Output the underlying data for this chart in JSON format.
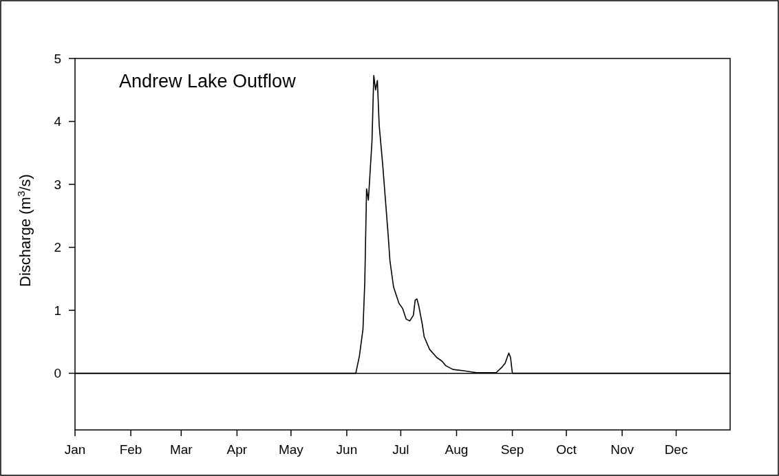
{
  "chart_data": {
    "type": "line",
    "title": "Andrew Lake Outflow",
    "ylabel": "Discharge (m$^{3}$/s)",
    "x": [
      "--01-01",
      "--06-06",
      "--06-08",
      "--06-10",
      "--06-11",
      "--06-12",
      "--06-13",
      "--06-15",
      "--06-16",
      "--06-17",
      "--06-18",
      "--06-19",
      "--06-21",
      "--06-24",
      "--06-25",
      "--06-27",
      "--06-30",
      "--07-02",
      "--07-04",
      "--07-06",
      "--07-08",
      "--07-09",
      "--07-10",
      "--07-11",
      "--07-13",
      "--07-14",
      "--07-17",
      "--07-21",
      "--07-24",
      "--07-26",
      "--07-30",
      "--08-05",
      "--08-12",
      "--08-23",
      "--08-26",
      "--08-28",
      "--08-30",
      "--08-31",
      "--09-01",
      "--12-31"
    ],
    "series": [
      {
        "color": "#000000",
        "values": [
          0,
          0,
          0.27,
          0.7,
          1.44,
          2.93,
          2.75,
          3.68,
          4.73,
          4.5,
          4.65,
          3.94,
          3.3,
          2.19,
          1.78,
          1.37,
          1.11,
          1.03,
          0.86,
          0.83,
          0.92,
          1.16,
          1.18,
          1.07,
          0.77,
          0.58,
          0.38,
          0.25,
          0.19,
          0.12,
          0.06,
          0.04,
          0.01,
          0.01,
          0.09,
          0.16,
          0.32,
          0.25,
          0,
          0
        ]
      }
    ],
    "xlim": [
      "--01-01",
      "--12-31"
    ],
    "xticks": [
      {
        "value": "--01-01",
        "label": "Jan"
      },
      {
        "value": "--02-01",
        "label": "Feb"
      },
      {
        "value": "--03-01",
        "label": "Mar"
      },
      {
        "value": "--04-01",
        "label": "Apr"
      },
      {
        "value": "--05-01",
        "label": "May"
      },
      {
        "value": "--06-01",
        "label": "Jun"
      },
      {
        "value": "--07-01",
        "label": "Jul"
      },
      {
        "value": "--08-01",
        "label": "Aug"
      },
      {
        "value": "--09-01",
        "label": "Sep"
      },
      {
        "value": "--10-01",
        "label": "Oct"
      },
      {
        "value": "--11-01",
        "label": "Nov"
      },
      {
        "value": "--12-01",
        "label": "Dec"
      }
    ],
    "ylim": [
      -0.9,
      5
    ],
    "yticks": [
      0,
      1,
      2,
      3,
      4,
      5
    ],
    "ref_lines": [
      {
        "axis": "y",
        "value": 0,
        "color": "#000000"
      }
    ],
    "grid": false,
    "marker": "none",
    "line_style": "solid"
  }
}
